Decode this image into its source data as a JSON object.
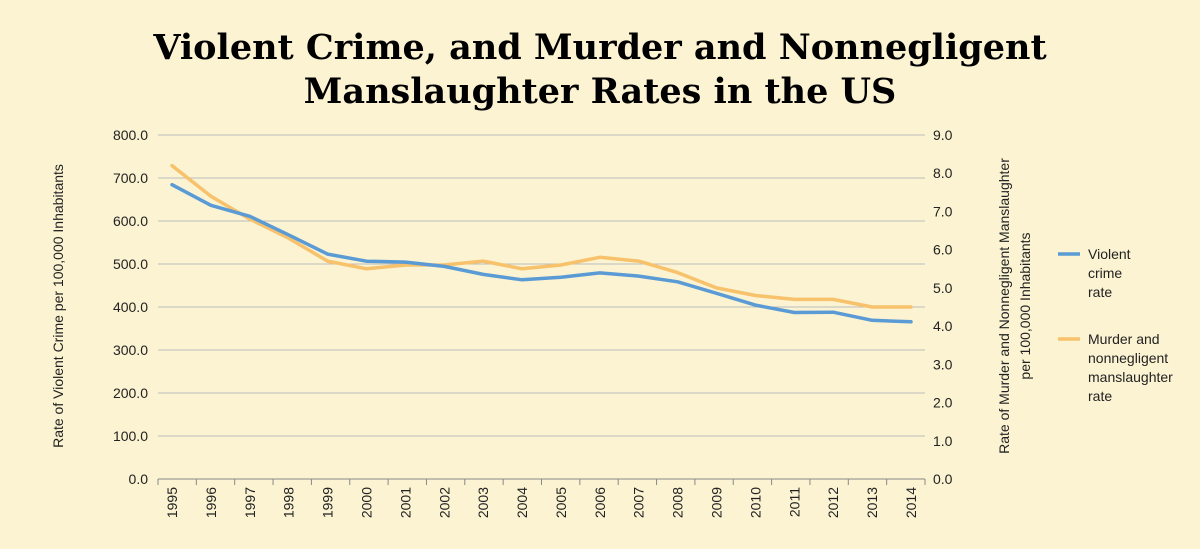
{
  "title": {
    "line1": "Violent Crime, and Murder and Nonnegligent",
    "line2": "Manslaughter Rates in the US"
  },
  "colors": {
    "background": "#fbf3d2",
    "violent": "#5b9bd5",
    "murder": "#f7c26b",
    "grid": "#bdbdbd"
  },
  "chart_data": {
    "type": "line",
    "x": [
      "1995",
      "1996",
      "1997",
      "1998",
      "1999",
      "2000",
      "2001",
      "2002",
      "2003",
      "2004",
      "2005",
      "2006",
      "2007",
      "2008",
      "2009",
      "2010",
      "2011",
      "2012",
      "2013",
      "2014"
    ],
    "left_axis": {
      "label": "Rate of Violent Crime per 100,000 Inhabitants",
      "ylim": [
        0,
        800
      ],
      "ticks": [
        "0.0",
        "100.0",
        "200.0",
        "300.0",
        "400.0",
        "500.0",
        "600.0",
        "700.0",
        "800.0"
      ]
    },
    "right_axis": {
      "label_line1": "Rate of Murder and Nonnegligent Manslaughter",
      "label_line2": "per 100,000 Inhabitants",
      "ylim": [
        0,
        9
      ],
      "ticks": [
        "0.0",
        "1.0",
        "2.0",
        "3.0",
        "4.0",
        "5.0",
        "6.0",
        "7.0",
        "8.0",
        "9.0"
      ]
    },
    "grid": true,
    "legend_position": "right",
    "series": [
      {
        "name": [
          "Violent",
          "crime",
          "rate"
        ],
        "axis": "left",
        "values": [
          684.5,
          636.6,
          611.0,
          567.6,
          523.0,
          506.5,
          504.5,
          494.4,
          475.8,
          463.2,
          469.0,
          479.3,
          471.8,
          458.6,
          431.9,
          404.5,
          387.1,
          387.8,
          369.1,
          365.5
        ]
      },
      {
        "name": [
          "Murder and",
          "nonnegligent",
          "manslaughter",
          "rate"
        ],
        "axis": "right",
        "values": [
          8.2,
          7.4,
          6.8,
          6.3,
          5.7,
          5.5,
          5.6,
          5.6,
          5.7,
          5.5,
          5.6,
          5.8,
          5.7,
          5.4,
          5.0,
          4.8,
          4.7,
          4.7,
          4.5,
          4.5
        ]
      }
    ]
  }
}
